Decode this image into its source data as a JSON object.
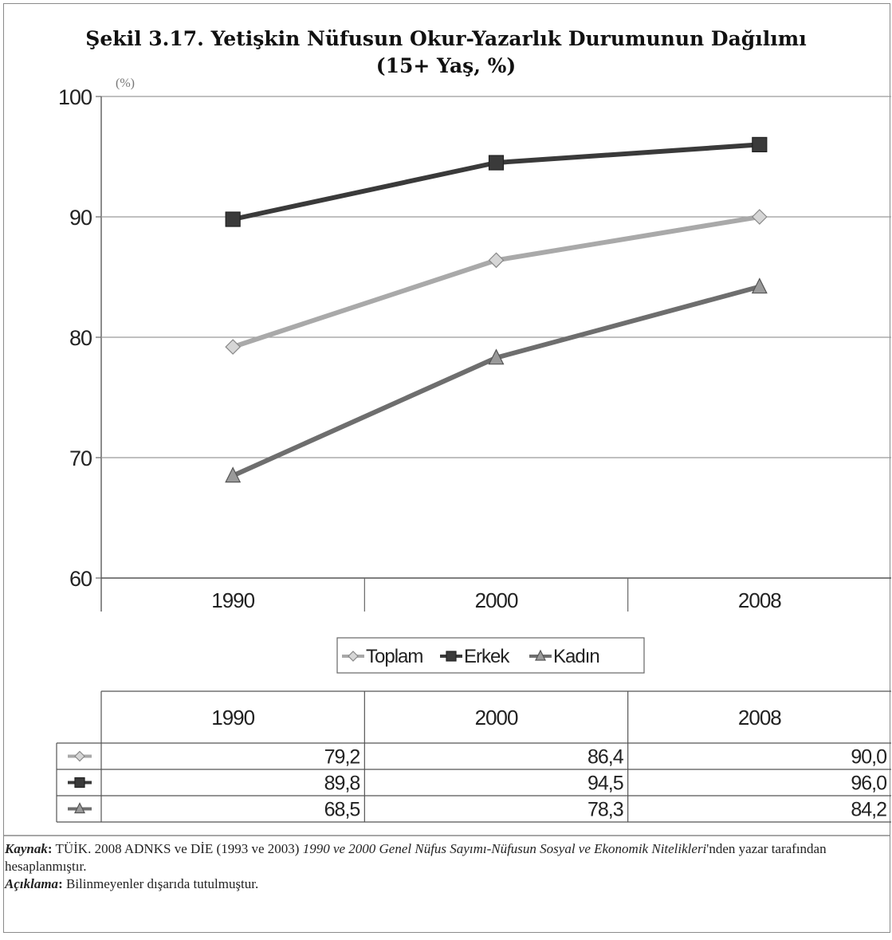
{
  "chart_data": {
    "type": "line",
    "title": "Şekil 3.17. Yetişkin Nüfusun Okur-Yazarlık Durumunun Dağılımı",
    "subtitle": "(15+ Yaş, %)",
    "ylabel": "(%)",
    "xlabel": "",
    "categories": [
      "1990",
      "2000",
      "2008"
    ],
    "ylim": [
      60,
      100
    ],
    "yticks": [
      "60",
      "70",
      "80",
      "90",
      "100"
    ],
    "grid": true,
    "legend_position": "bottom",
    "series": [
      {
        "name": "Toplam",
        "values": [
          79.2,
          86.4,
          90.0
        ],
        "labels": [
          "79,2",
          "86,4",
          "90,0"
        ],
        "marker": "diamond",
        "color": "#a9a9a9"
      },
      {
        "name": "Erkek",
        "values": [
          89.8,
          94.5,
          96.0
        ],
        "labels": [
          "89,8",
          "94,5",
          "96,0"
        ],
        "marker": "square",
        "color": "#3a3a3a"
      },
      {
        "name": "Kadın",
        "values": [
          68.5,
          78.3,
          84.2
        ],
        "labels": [
          "68,5",
          "78,3",
          "84,2"
        ],
        "marker": "triangle",
        "color": "#6e6e6e"
      }
    ]
  },
  "notes": {
    "source_label": "Kaynak",
    "source_text_1": "TÜİK. 2008 ADNKS ve DİE (1993 ve 2003) ",
    "source_italic": "1990 ve 2000 Genel Nüfus Sayımı-Nüfusun Sosyal ve Ekonomik Nitelikleri",
    "source_text_2": "'nden yazar tarafından hesaplanmıştır.",
    "explanation_label": "Açıklama",
    "explanation_text": "Bilinmeyenler dışarıda tutulmuştur."
  }
}
